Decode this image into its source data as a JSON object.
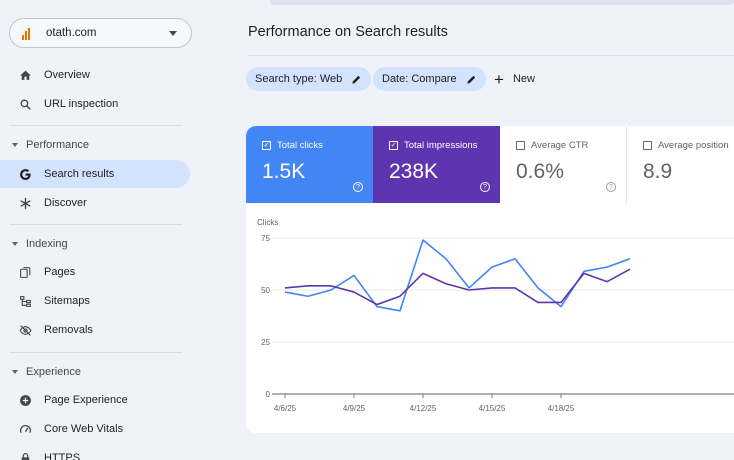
{
  "sidebar": {
    "property": "otath.com",
    "items_top": [
      {
        "label": "Overview",
        "icon": "home-icon"
      },
      {
        "label": "URL inspection",
        "icon": "search-icon"
      }
    ],
    "sections": [
      {
        "label": "Performance",
        "items": [
          {
            "label": "Search results",
            "icon": "google-g-icon",
            "active": true
          },
          {
            "label": "Discover",
            "icon": "asterisk-icon"
          }
        ]
      },
      {
        "label": "Indexing",
        "items": [
          {
            "label": "Pages",
            "icon": "pages-icon"
          },
          {
            "label": "Sitemaps",
            "icon": "sitemap-icon"
          },
          {
            "label": "Removals",
            "icon": "eye-off-icon"
          }
        ]
      },
      {
        "label": "Experience",
        "items": [
          {
            "label": "Page Experience",
            "icon": "plus-circle-icon"
          },
          {
            "label": "Core Web Vitals",
            "icon": "gauge-icon"
          },
          {
            "label": "HTTPS",
            "icon": "lock-icon"
          }
        ]
      }
    ]
  },
  "main": {
    "title": "Performance on Search results",
    "filters": [
      "Search type: Web",
      "Date: Compare"
    ],
    "new_label": "New",
    "metrics": [
      {
        "label": "Total clicks",
        "value": "1.5K",
        "checked": true,
        "color": "#4285f4"
      },
      {
        "label": "Total impressions",
        "value": "238K",
        "checked": true,
        "color": "#5e35b1"
      },
      {
        "label": "Average CTR",
        "value": "0.6%",
        "checked": false
      },
      {
        "label": "Average position",
        "value": "8.9",
        "checked": false
      }
    ]
  },
  "chart_data": {
    "type": "line",
    "ylabel": "Clicks",
    "ylim": [
      0,
      75
    ],
    "yticks": [
      0,
      25,
      50,
      75
    ],
    "x_tick_labels": [
      "4/6/25",
      "4/9/25",
      "4/12/25",
      "4/15/25",
      "4/18/25"
    ],
    "x": [
      "4/6/25",
      "4/7/25",
      "4/8/25",
      "4/9/25",
      "4/10/25",
      "4/11/25",
      "4/12/25",
      "4/13/25",
      "4/14/25",
      "4/15/25",
      "4/16/25",
      "4/17/25",
      "4/18/25",
      "4/19/25",
      "4/20/25",
      "4/21/25"
    ],
    "series": [
      {
        "color": "#4285f4",
        "values": [
          49,
          47,
          50,
          57,
          42,
          40,
          74,
          65,
          51,
          61,
          65,
          51,
          42,
          59,
          61,
          65
        ]
      },
      {
        "color": "#5e35b1",
        "values": [
          51,
          52,
          52,
          49,
          43,
          47,
          58,
          53,
          50,
          51,
          51,
          44,
          44,
          58,
          54,
          60
        ]
      }
    ]
  }
}
